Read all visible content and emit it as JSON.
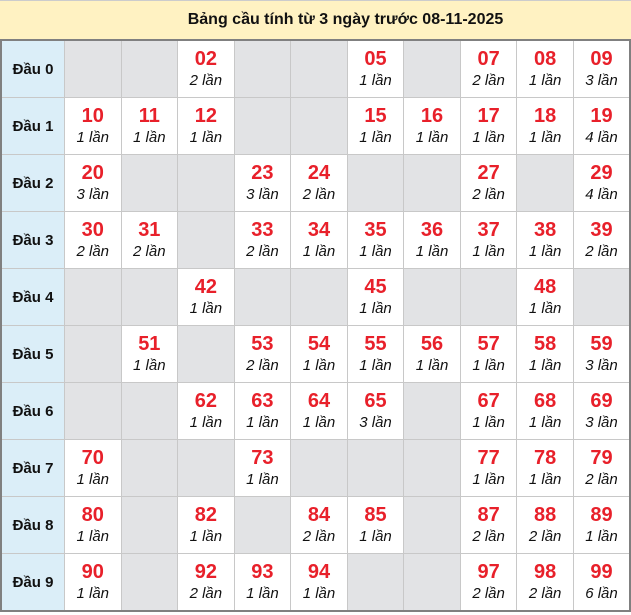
{
  "title": "Bảng cầu tính từ 3 ngày trước 08-11-2025",
  "colors": {
    "number": "#e8202a",
    "header_bg": "#fff2c2",
    "row_head_bg": "#dbeef8",
    "empty_bg": "#e2e3e5"
  },
  "rows": [
    {
      "label": "Đầu 0",
      "cells": [
        null,
        null,
        {
          "n": "02",
          "c": "2 lần"
        },
        null,
        null,
        {
          "n": "05",
          "c": "1 lần"
        },
        null,
        {
          "n": "07",
          "c": "2 lần"
        },
        {
          "n": "08",
          "c": "1 lần"
        },
        {
          "n": "09",
          "c": "3 lần"
        }
      ]
    },
    {
      "label": "Đầu 1",
      "cells": [
        {
          "n": "10",
          "c": "1 lần"
        },
        {
          "n": "11",
          "c": "1 lần"
        },
        {
          "n": "12",
          "c": "1 lần"
        },
        null,
        null,
        {
          "n": "15",
          "c": "1 lần"
        },
        {
          "n": "16",
          "c": "1 lần"
        },
        {
          "n": "17",
          "c": "1 lần"
        },
        {
          "n": "18",
          "c": "1 lần"
        },
        {
          "n": "19",
          "c": "4 lần"
        }
      ]
    },
    {
      "label": "Đầu 2",
      "cells": [
        {
          "n": "20",
          "c": "3 lần"
        },
        null,
        null,
        {
          "n": "23",
          "c": "3 lần"
        },
        {
          "n": "24",
          "c": "2 lần"
        },
        null,
        null,
        {
          "n": "27",
          "c": "2 lần"
        },
        null,
        {
          "n": "29",
          "c": "4 lần"
        }
      ]
    },
    {
      "label": "Đầu 3",
      "cells": [
        {
          "n": "30",
          "c": "2 lần"
        },
        {
          "n": "31",
          "c": "2 lần"
        },
        null,
        {
          "n": "33",
          "c": "2 lần"
        },
        {
          "n": "34",
          "c": "1 lần"
        },
        {
          "n": "35",
          "c": "1 lần"
        },
        {
          "n": "36",
          "c": "1 lần"
        },
        {
          "n": "37",
          "c": "1 lần"
        },
        {
          "n": "38",
          "c": "1 lần"
        },
        {
          "n": "39",
          "c": "2 lần"
        }
      ]
    },
    {
      "label": "Đầu 4",
      "cells": [
        null,
        null,
        {
          "n": "42",
          "c": "1 lần"
        },
        null,
        null,
        {
          "n": "45",
          "c": "1 lần"
        },
        null,
        null,
        {
          "n": "48",
          "c": "1 lần"
        },
        null
      ]
    },
    {
      "label": "Đầu 5",
      "cells": [
        null,
        {
          "n": "51",
          "c": "1 lần"
        },
        null,
        {
          "n": "53",
          "c": "2 lần"
        },
        {
          "n": "54",
          "c": "1 lần"
        },
        {
          "n": "55",
          "c": "1 lần"
        },
        {
          "n": "56",
          "c": "1 lần"
        },
        {
          "n": "57",
          "c": "1 lần"
        },
        {
          "n": "58",
          "c": "1 lần"
        },
        {
          "n": "59",
          "c": "3 lần"
        }
      ]
    },
    {
      "label": "Đầu 6",
      "cells": [
        null,
        null,
        {
          "n": "62",
          "c": "1 lần"
        },
        {
          "n": "63",
          "c": "1 lần"
        },
        {
          "n": "64",
          "c": "1 lần"
        },
        {
          "n": "65",
          "c": "3 lần"
        },
        null,
        {
          "n": "67",
          "c": "1 lần"
        },
        {
          "n": "68",
          "c": "1 lần"
        },
        {
          "n": "69",
          "c": "3 lần"
        }
      ]
    },
    {
      "label": "Đầu 7",
      "cells": [
        {
          "n": "70",
          "c": "1 lần"
        },
        null,
        null,
        {
          "n": "73",
          "c": "1 lần"
        },
        null,
        null,
        null,
        {
          "n": "77",
          "c": "1 lần"
        },
        {
          "n": "78",
          "c": "1 lần"
        },
        {
          "n": "79",
          "c": "2 lần"
        }
      ]
    },
    {
      "label": "Đầu 8",
      "cells": [
        {
          "n": "80",
          "c": "1 lần"
        },
        null,
        {
          "n": "82",
          "c": "1 lần"
        },
        null,
        {
          "n": "84",
          "c": "2 lần"
        },
        {
          "n": "85",
          "c": "1 lần"
        },
        null,
        {
          "n": "87",
          "c": "2 lần"
        },
        {
          "n": "88",
          "c": "2 lần"
        },
        {
          "n": "89",
          "c": "1 lần"
        }
      ]
    },
    {
      "label": "Đầu 9",
      "cells": [
        {
          "n": "90",
          "c": "1 lần"
        },
        null,
        {
          "n": "92",
          "c": "2 lần"
        },
        {
          "n": "93",
          "c": "1 lần"
        },
        {
          "n": "94",
          "c": "1 lần"
        },
        null,
        null,
        {
          "n": "97",
          "c": "2 lần"
        },
        {
          "n": "98",
          "c": "2 lần"
        },
        {
          "n": "99",
          "c": "6 lần"
        }
      ]
    }
  ]
}
